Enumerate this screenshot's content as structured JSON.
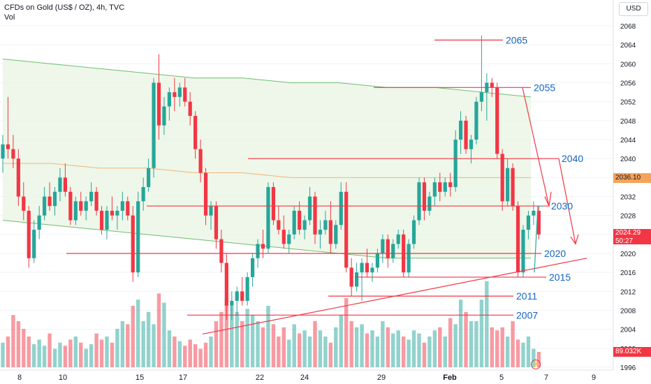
{
  "header": {
    "title": "CFDs on Gold (US$ / OZ), 4h, TVC",
    "vol_label": "Vol"
  },
  "currency": "USD",
  "price_tags": {
    "last_price": "2024.29",
    "countdown": "50:27",
    "ma_value": "2036.10",
    "volume_value": "89.032K"
  },
  "colors": {
    "up": "#26a69a",
    "down": "#f23645",
    "band": "#eaf5e4",
    "line_red": "#f23645",
    "label_blue": "#1565c0"
  },
  "chart_data": {
    "type": "candlestick",
    "ylim": [
      1996,
      2070
    ],
    "y_ticks": [
      1996,
      2000,
      2004,
      2008,
      2012,
      2016,
      2020,
      2024,
      2028,
      2032,
      2036,
      2040,
      2044,
      2048,
      2052,
      2056,
      2060,
      2064,
      2068
    ],
    "x_ticks": [
      "8",
      "10",
      "15",
      "17",
      "22",
      "24",
      "29",
      "Feb",
      "5",
      "7",
      "9"
    ],
    "levels": [
      {
        "label": "2065",
        "price": 2065
      },
      {
        "label": "2055",
        "price": 2055
      },
      {
        "label": "2040",
        "price": 2040
      },
      {
        "label": "2030",
        "price": 2030
      },
      {
        "label": "2020",
        "price": 2020
      },
      {
        "label": "2015",
        "price": 2015
      },
      {
        "label": "2011",
        "price": 2011
      },
      {
        "label": "2007",
        "price": 2007
      }
    ],
    "candles": [
      [
        2040,
        2045,
        2037,
        2043
      ],
      [
        2043,
        2053,
        2040,
        2042
      ],
      [
        2042,
        2045,
        2038,
        2040
      ],
      [
        2040,
        2042,
        2030,
        2032
      ],
      [
        2032,
        2035,
        2027,
        2029
      ],
      [
        2029,
        2030,
        2017,
        2019
      ],
      [
        2019,
        2027,
        2018,
        2025
      ],
      [
        2025,
        2030,
        2023,
        2028
      ],
      [
        2028,
        2034,
        2027,
        2032
      ],
      [
        2032,
        2035,
        2029,
        2030
      ],
      [
        2030,
        2034,
        2028,
        2033
      ],
      [
        2033,
        2038,
        2031,
        2036
      ],
      [
        2036,
        2039,
        2032,
        2033
      ],
      [
        2033,
        2034,
        2026,
        2027
      ],
      [
        2027,
        2032,
        2026,
        2031
      ],
      [
        2031,
        2033,
        2028,
        2029
      ],
      [
        2029,
        2032,
        2027,
        2031
      ],
      [
        2031,
        2035,
        2030,
        2033
      ],
      [
        2033,
        2034,
        2028,
        2029
      ],
      [
        2029,
        2030,
        2024,
        2025
      ],
      [
        2025,
        2030,
        2023,
        2029
      ],
      [
        2029,
        2032,
        2027,
        2028
      ],
      [
        2028,
        2030,
        2025,
        2029
      ],
      [
        2029,
        2033,
        2027,
        2031
      ],
      [
        2031,
        2032,
        2027,
        2028
      ],
      [
        2028,
        2030,
        2014,
        2016
      ],
      [
        2016,
        2033,
        2015,
        2031
      ],
      [
        2031,
        2036,
        2029,
        2034
      ],
      [
        2034,
        2040,
        2033,
        2038
      ],
      [
        2038,
        2057,
        2036,
        2056
      ],
      [
        2056,
        2062,
        2044,
        2047
      ],
      [
        2047,
        2053,
        2045,
        2051
      ],
      [
        2051,
        2055,
        2048,
        2054
      ],
      [
        2054,
        2057,
        2050,
        2053
      ],
      [
        2053,
        2056,
        2051,
        2055
      ],
      [
        2055,
        2057,
        2051,
        2052
      ],
      [
        2052,
        2054,
        2047,
        2049
      ],
      [
        2049,
        2050,
        2040,
        2042
      ],
      [
        2042,
        2044,
        2035,
        2037
      ],
      [
        2037,
        2038,
        2026,
        2028
      ],
      [
        2028,
        2031,
        2025,
        2030
      ],
      [
        2030,
        2031,
        2021,
        2023
      ],
      [
        2023,
        2025,
        2016,
        2018
      ],
      [
        2018,
        2020,
        2006,
        2009
      ],
      [
        2009,
        2012,
        2006,
        2010
      ],
      [
        2010,
        2013,
        2007,
        2012
      ],
      [
        2012,
        2015,
        2009,
        2010
      ],
      [
        2010,
        2016,
        2009,
        2015
      ],
      [
        2015,
        2020,
        2013,
        2019
      ],
      [
        2019,
        2023,
        2017,
        2022
      ],
      [
        2022,
        2025,
        2019,
        2021
      ],
      [
        2021,
        2035,
        2020,
        2034
      ],
      [
        2034,
        2035,
        2026,
        2027
      ],
      [
        2027,
        2030,
        2024,
        2025
      ],
      [
        2025,
        2028,
        2021,
        2022
      ],
      [
        2022,
        2025,
        2020,
        2024
      ],
      [
        2024,
        2030,
        2023,
        2029
      ],
      [
        2029,
        2031,
        2024,
        2025
      ],
      [
        2025,
        2028,
        2023,
        2027
      ],
      [
        2027,
        2034,
        2026,
        2032
      ],
      [
        2032,
        2033,
        2022,
        2024
      ],
      [
        2024,
        2027,
        2021,
        2025
      ],
      [
        2025,
        2029,
        2024,
        2027
      ],
      [
        2027,
        2031,
        2020,
        2022
      ],
      [
        2022,
        2027,
        2021,
        2026
      ],
      [
        2026,
        2035,
        2025,
        2033
      ],
      [
        2033,
        2035,
        2016,
        2017
      ],
      [
        2017,
        2019,
        2011,
        2013
      ],
      [
        2013,
        2018,
        2012,
        2016
      ],
      [
        2016,
        2019,
        2010,
        2018
      ],
      [
        2018,
        2021,
        2015,
        2016
      ],
      [
        2016,
        2018,
        2014,
        2017
      ],
      [
        2017,
        2021,
        2016,
        2020
      ],
      [
        2020,
        2024,
        2018,
        2023
      ],
      [
        2023,
        2024,
        2017,
        2019
      ],
      [
        2019,
        2023,
        2018,
        2022
      ],
      [
        2022,
        2025,
        2021,
        2024
      ],
      [
        2024,
        2025,
        2015,
        2016
      ],
      [
        2016,
        2023,
        2015,
        2022
      ],
      [
        2022,
        2028,
        2021,
        2027
      ],
      [
        2027,
        2036,
        2026,
        2035
      ],
      [
        2035,
        2036,
        2027,
        2029
      ],
      [
        2029,
        2033,
        2028,
        2032
      ],
      [
        2032,
        2036,
        2030,
        2035
      ],
      [
        2035,
        2037,
        2031,
        2033
      ],
      [
        2033,
        2036,
        2032,
        2035
      ],
      [
        2035,
        2037,
        2032,
        2034
      ],
      [
        2034,
        2046,
        2033,
        2044
      ],
      [
        2044,
        2050,
        2041,
        2048
      ],
      [
        2048,
        2049,
        2041,
        2042
      ],
      [
        2042,
        2045,
        2039,
        2044
      ],
      [
        2044,
        2053,
        2043,
        2052
      ],
      [
        2052,
        2066,
        2050,
        2054
      ],
      [
        2054,
        2058,
        2048,
        2056
      ],
      [
        2056,
        2057,
        2053,
        2055
      ],
      [
        2055,
        2056,
        2040,
        2041
      ],
      [
        2041,
        2042,
        2029,
        2031
      ],
      [
        2031,
        2040,
        2030,
        2038
      ],
      [
        2038,
        2039,
        2029,
        2030
      ],
      [
        2030,
        2031,
        2015,
        2016
      ],
      [
        2016,
        2026,
        2015,
        2025
      ],
      [
        2025,
        2029,
        2023,
        2028
      ],
      [
        2028,
        2031,
        2026,
        2029
      ],
      [
        2029,
        2030,
        2023,
        2024
      ]
    ],
    "volumes": [
      16,
      20,
      34,
      30,
      25,
      20,
      15,
      18,
      14,
      22,
      12,
      16,
      14,
      18,
      20,
      16,
      12,
      15,
      22,
      18,
      20,
      16,
      25,
      30,
      28,
      40,
      44,
      30,
      36,
      28,
      48,
      42,
      24,
      20,
      17,
      14,
      18,
      15,
      12,
      16,
      20,
      30,
      36,
      44,
      40,
      36,
      30,
      38,
      34,
      30,
      26,
      40,
      28,
      20,
      26,
      18,
      28,
      22,
      24,
      20,
      30,
      24,
      20,
      16,
      26,
      34,
      45,
      30,
      26,
      28,
      22,
      24,
      20,
      30,
      26,
      22,
      24,
      20,
      18,
      24,
      22,
      16,
      20,
      24,
      26,
      20,
      32,
      28,
      44,
      36,
      30,
      30,
      44,
      56,
      26,
      24,
      26,
      20,
      30,
      18,
      16,
      20,
      12,
      10
    ],
    "series": [
      {
        "values": [
          2061,
          2060,
          2059,
          2058,
          2057,
          2057,
          2056,
          2056,
          2055,
          2055,
          2054,
          2053
        ]
      },
      {
        "values": [
          2039,
          2039,
          2038,
          2038,
          2037,
          2037,
          2036,
          2036,
          2036,
          2036,
          2036,
          2036
        ]
      },
      {
        "values": [
          2027,
          2026,
          2025,
          2024,
          2023,
          2022,
          2021,
          2020,
          2019,
          2019,
          2019,
          2019
        ]
      }
    ]
  }
}
